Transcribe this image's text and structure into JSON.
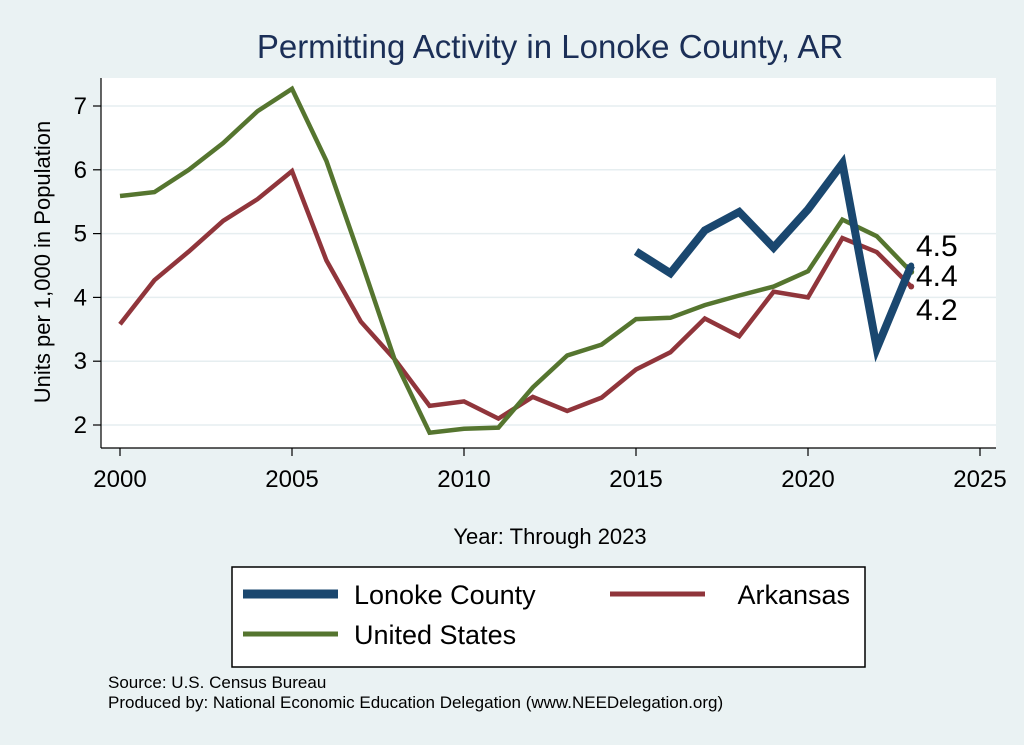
{
  "chart_data": {
    "type": "line",
    "title": "Permitting Activity in Lonoke County, AR",
    "xlabel": "Year: Through 2023",
    "ylabel": "Units per 1,000 in Population",
    "xlim": [
      2000,
      2025
    ],
    "ylim": [
      1.75,
      7.5
    ],
    "xticks": [
      2000,
      2005,
      2010,
      2015,
      2020,
      2025
    ],
    "yticks": [
      2,
      3,
      4,
      5,
      6,
      7
    ],
    "grid": true,
    "legend_position": "bottom",
    "series": [
      {
        "name": "Lonoke County",
        "color": "#1a476f",
        "x": [
          2015,
          2016,
          2017,
          2018,
          2019,
          2020,
          2021,
          2022,
          2023
        ],
        "values": [
          4.72,
          4.38,
          5.05,
          5.34,
          4.78,
          5.38,
          6.1,
          3.2,
          4.5
        ],
        "end_label": "4.5"
      },
      {
        "name": "Arkansas",
        "color": "#90353b",
        "x": [
          2000,
          2001,
          2002,
          2003,
          2004,
          2005,
          2006,
          2007,
          2008,
          2009,
          2010,
          2011,
          2012,
          2013,
          2014,
          2015,
          2016,
          2017,
          2018,
          2019,
          2020,
          2021,
          2022,
          2023
        ],
        "values": [
          3.58,
          4.27,
          4.72,
          5.2,
          5.54,
          5.98,
          4.58,
          3.62,
          3.02,
          2.3,
          2.37,
          2.1,
          2.44,
          2.22,
          2.43,
          2.87,
          3.14,
          3.67,
          3.39,
          4.09,
          4.0,
          4.93,
          4.71,
          4.17
        ],
        "end_label": "4.2"
      },
      {
        "name": "United States",
        "color": "#55752f",
        "x": [
          2000,
          2001,
          2002,
          2003,
          2004,
          2005,
          2006,
          2007,
          2008,
          2009,
          2010,
          2011,
          2012,
          2013,
          2014,
          2015,
          2016,
          2017,
          2018,
          2019,
          2020,
          2021,
          2022,
          2023
        ],
        "values": [
          5.59,
          5.65,
          6.0,
          6.42,
          6.92,
          7.27,
          6.14,
          4.59,
          3.0,
          1.88,
          1.94,
          1.96,
          2.59,
          3.09,
          3.26,
          3.66,
          3.68,
          3.88,
          4.03,
          4.17,
          4.41,
          5.22,
          4.96,
          4.4
        ],
        "end_label": "4.4"
      }
    ]
  },
  "legend": {
    "items": [
      {
        "label": "Lonoke County",
        "color": "#1a476f"
      },
      {
        "label": "Arkansas",
        "color": "#90353b"
      },
      {
        "label": "United States",
        "color": "#55752f"
      }
    ]
  },
  "footer": {
    "source": "Source: U.S. Census Bureau",
    "produced_by": "Produced by: National Economic Education Delegation (www.NEEDelegation.org)"
  }
}
